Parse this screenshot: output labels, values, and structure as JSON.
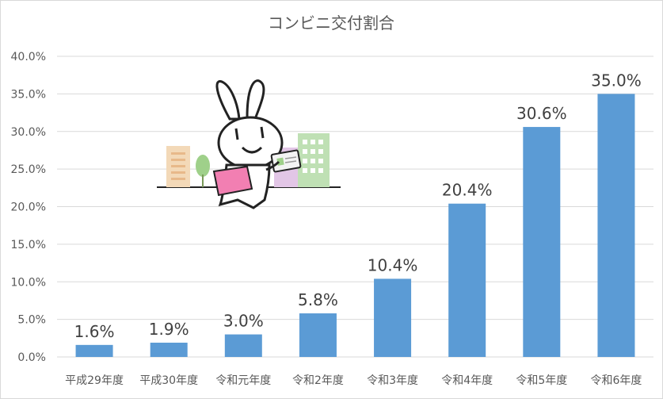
{
  "chart_data": {
    "type": "bar",
    "title": "コンビニ交付割合",
    "categories": [
      "平成29年度",
      "平成30年度",
      "令和元年度",
      "令和2年度",
      "令和3年度",
      "令和4年度",
      "令和5年度",
      "令和6年度"
    ],
    "values": [
      1.6,
      1.9,
      3.0,
      5.8,
      10.4,
      20.4,
      30.6,
      35.0
    ],
    "data_labels": [
      "1.6%",
      "1.9%",
      "3.0%",
      "5.8%",
      "10.4%",
      "20.4%",
      "30.6%",
      "35.0%"
    ],
    "yticks": [
      "0.0%",
      "5.0%",
      "10.0%",
      "15.0%",
      "20.0%",
      "25.0%",
      "30.0%",
      "35.0%",
      "40.0%"
    ],
    "ylim": [
      0,
      40
    ],
    "xlabel": "",
    "ylabel": "",
    "grid": true,
    "legend": "none",
    "bar_color": "#5b9bd5",
    "illustration": "mascot-rabbit-with-card-icon"
  }
}
